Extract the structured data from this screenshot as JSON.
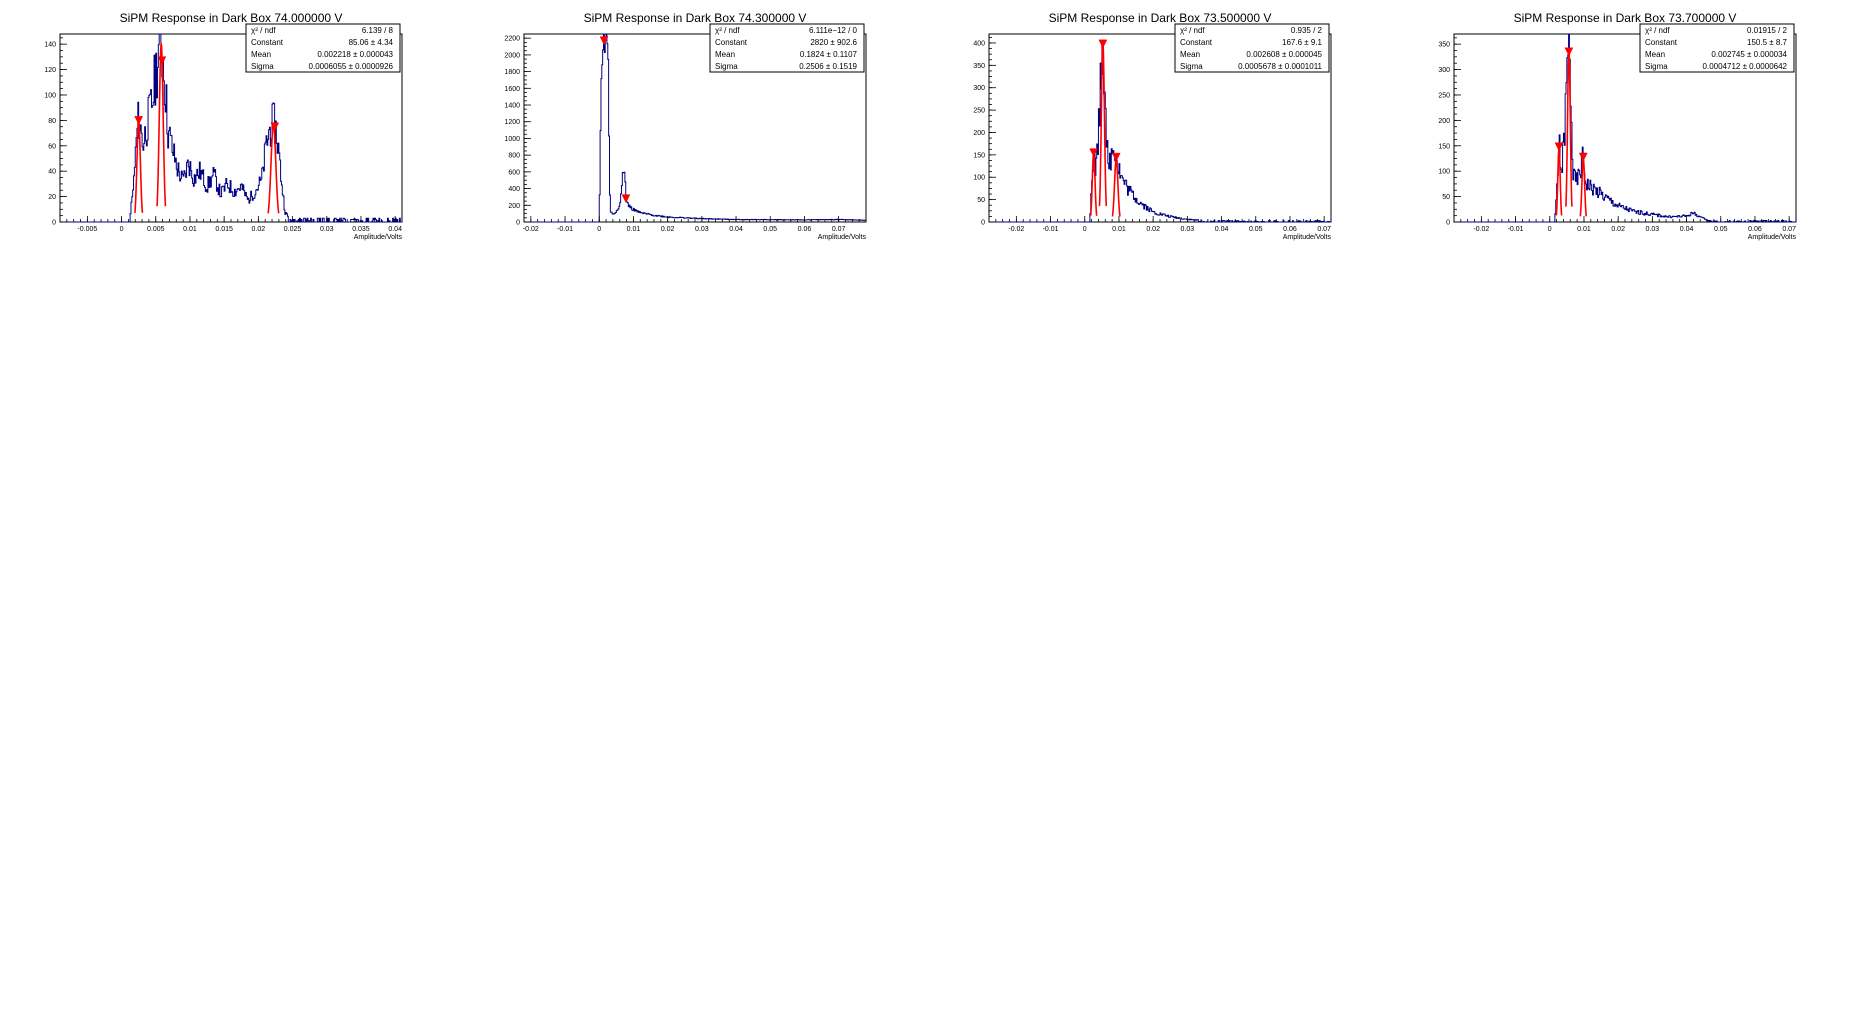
{
  "chart_data": [
    {
      "type": "histogram",
      "title": "SiPM Response in Dark Box 74.000000 V",
      "xlabel": "Amplitude/Volts",
      "ylabel": "",
      "xlim": [
        -0.009,
        0.041
      ],
      "ylim": [
        0,
        148
      ],
      "xticks": [
        -0.005,
        0,
        0.005,
        0.01,
        0.015,
        0.02,
        0.025,
        0.03,
        0.035,
        0.04
      ],
      "xtick_labels": [
        "-0.005",
        "0",
        "0.005",
        "0.01",
        "0.015",
        "0.02",
        "0.025",
        "0.03",
        "0.035",
        "0.04"
      ],
      "yticks": [
        0,
        20,
        40,
        60,
        80,
        100,
        120,
        140
      ],
      "ytick_labels": [
        "0",
        "20",
        "40",
        "60",
        "80",
        "100",
        "120",
        "140"
      ],
      "stats": [
        {
          "name": "χ² / ndf",
          "value": "6.139 / 8"
        },
        {
          "name": "Constant",
          "value": "85.06 ± 4.34"
        },
        {
          "name": "Mean",
          "value": "0.002218 ± 0.000043"
        },
        {
          "name": "Sigma",
          "value": "0.0006055 ± 0.0000926"
        }
      ],
      "hist": {
        "line_color": "#000080",
        "shape_points": [
          [
            -0.009,
            0
          ],
          [
            0.0005,
            0
          ],
          [
            0.0012,
            3
          ],
          [
            0.0017,
            25
          ],
          [
            0.0022,
            65
          ],
          [
            0.0025,
            83
          ],
          [
            0.0028,
            72
          ],
          [
            0.0032,
            62
          ],
          [
            0.0038,
            78
          ],
          [
            0.0045,
            95
          ],
          [
            0.0052,
            125
          ],
          [
            0.0058,
            142
          ],
          [
            0.0062,
            122
          ],
          [
            0.0068,
            72
          ],
          [
            0.0075,
            56
          ],
          [
            0.0082,
            42
          ],
          [
            0.009,
            32
          ],
          [
            0.0098,
            47
          ],
          [
            0.0106,
            34
          ],
          [
            0.0115,
            40
          ],
          [
            0.0125,
            28
          ],
          [
            0.0135,
            37
          ],
          [
            0.0145,
            22
          ],
          [
            0.0155,
            30
          ],
          [
            0.0165,
            24
          ],
          [
            0.0175,
            28
          ],
          [
            0.0185,
            17
          ],
          [
            0.0195,
            24
          ],
          [
            0.0205,
            33
          ],
          [
            0.0212,
            62
          ],
          [
            0.0218,
            75
          ],
          [
            0.0224,
            78
          ],
          [
            0.0229,
            60
          ],
          [
            0.0234,
            32
          ],
          [
            0.0239,
            8
          ],
          [
            0.0245,
            3
          ],
          [
            0.0265,
            2
          ],
          [
            0.03,
            1
          ],
          [
            0.035,
            1
          ],
          [
            0.04,
            1
          ],
          [
            0.041,
            0
          ]
        ],
        "seed": 11
      },
      "fits": [
        {
          "mean": 0.0025,
          "sigma": 0.00025,
          "amp": 80
        },
        {
          "mean": 0.0058,
          "sigma": 0.00028,
          "amp": 140
        },
        {
          "mean": 0.0222,
          "sigma": 0.00035,
          "amp": 77
        }
      ],
      "markers": [
        {
          "x": 0.0025,
          "y": 80
        },
        {
          "x": 0.0059,
          "y": 127
        },
        {
          "x": 0.0224,
          "y": 75
        }
      ]
    },
    {
      "type": "histogram",
      "title": "SiPM Response in Dark Box 74.300000 V",
      "xlabel": "Amplitude/Volts",
      "ylabel": "",
      "xlim": [
        -0.022,
        0.078
      ],
      "ylim": [
        0,
        2250
      ],
      "xticks": [
        -0.02,
        -0.01,
        0,
        0.01,
        0.02,
        0.03,
        0.04,
        0.05,
        0.06,
        0.07
      ],
      "xtick_labels": [
        "-0.02",
        "-0.01",
        "0",
        "0.01",
        "0.02",
        "0.03",
        "0.04",
        "0.05",
        "0.06",
        "0.07"
      ],
      "yticks": [
        0,
        200,
        400,
        600,
        800,
        1000,
        1200,
        1400,
        1600,
        1800,
        2000,
        2200
      ],
      "ytick_labels": [
        "0",
        "200",
        "400",
        "600",
        "800",
        "1000",
        "1200",
        "1400",
        "1600",
        "1800",
        "2000",
        "2200"
      ],
      "stats": [
        {
          "name": "χ² / ndf",
          "value": "6.111e−12 / 0"
        },
        {
          "name": "Constant",
          "value": "2820 ± 902.6"
        },
        {
          "name": "Mean",
          "value": "0.1824 ± 0.1107"
        },
        {
          "name": "Sigma",
          "value": "0.2506 ± 0.1519"
        }
      ],
      "hist": {
        "line_color": "#000080",
        "shape_points": [
          [
            -0.022,
            0
          ],
          [
            0.0,
            0
          ],
          [
            0.0005,
            1400
          ],
          [
            0.001,
            2200
          ],
          [
            0.0025,
            2200
          ],
          [
            0.0032,
            120
          ],
          [
            0.0045,
            90
          ],
          [
            0.006,
            200
          ],
          [
            0.0068,
            570
          ],
          [
            0.0075,
            570
          ],
          [
            0.008,
            230
          ],
          [
            0.0095,
            160
          ],
          [
            0.012,
            110
          ],
          [
            0.016,
            80
          ],
          [
            0.02,
            60
          ],
          [
            0.03,
            40
          ],
          [
            0.04,
            30
          ],
          [
            0.05,
            28
          ],
          [
            0.06,
            25
          ],
          [
            0.07,
            30
          ],
          [
            0.078,
            20
          ]
        ],
        "seed": 22,
        "noise_scale": 0.12
      },
      "fits": [],
      "markers": [
        {
          "x": 0.0014,
          "y": 2170
        },
        {
          "x": 0.0078,
          "y": 280
        }
      ]
    },
    {
      "type": "histogram",
      "title": "SiPM Response in Dark Box 73.500000 V",
      "xlabel": "Amplitude/Volts",
      "ylabel": "",
      "xlim": [
        -0.028,
        0.072
      ],
      "ylim": [
        0,
        420
      ],
      "xticks": [
        -0.02,
        -0.01,
        0,
        0.01,
        0.02,
        0.03,
        0.04,
        0.05,
        0.06,
        0.07
      ],
      "xtick_labels": [
        "-0.02",
        "-0.01",
        "0",
        "0.01",
        "0.02",
        "0.03",
        "0.04",
        "0.05",
        "0.06",
        "0.07"
      ],
      "yticks": [
        0,
        50,
        100,
        150,
        200,
        250,
        300,
        350,
        400
      ],
      "ytick_labels": [
        "0",
        "50",
        "100",
        "150",
        "200",
        "250",
        "300",
        "350",
        "400"
      ],
      "stats": [
        {
          "name": "χ² / ndf",
          "value": "0.935 / 2"
        },
        {
          "name": "Constant",
          "value": "167.6 ± 9.1"
        },
        {
          "name": "Mean",
          "value": "0.002608 ± 0.000045"
        },
        {
          "name": "Sigma",
          "value": "0.0005678 ± 0.0001011"
        }
      ],
      "hist": {
        "line_color": "#000080",
        "shape_points": [
          [
            -0.028,
            0
          ],
          [
            0.0015,
            0
          ],
          [
            0.002,
            90
          ],
          [
            0.0026,
            165
          ],
          [
            0.0032,
            110
          ],
          [
            0.0042,
            230
          ],
          [
            0.0052,
            410
          ],
          [
            0.006,
            300
          ],
          [
            0.0068,
            110
          ],
          [
            0.0078,
            150
          ],
          [
            0.0088,
            175
          ],
          [
            0.0096,
            130
          ],
          [
            0.011,
            95
          ],
          [
            0.013,
            70
          ],
          [
            0.016,
            45
          ],
          [
            0.02,
            22
          ],
          [
            0.025,
            12
          ],
          [
            0.03,
            6
          ],
          [
            0.035,
            3
          ],
          [
            0.045,
            1
          ],
          [
            0.072,
            0
          ]
        ],
        "seed": 33
      },
      "fits": [
        {
          "mean": 0.0026,
          "sigma": 0.0004,
          "amp": 155
        },
        {
          "mean": 0.0053,
          "sigma": 0.00045,
          "amp": 400
        },
        {
          "mean": 0.0092,
          "sigma": 0.0005,
          "amp": 140
        }
      ],
      "markers": [
        {
          "x": 0.0026,
          "y": 155
        },
        {
          "x": 0.0053,
          "y": 398
        },
        {
          "x": 0.0092,
          "y": 145
        }
      ]
    },
    {
      "type": "histogram",
      "title": "SiPM Response in Dark Box 73.700000 V",
      "xlabel": "Amplitude/Volts",
      "ylabel": "",
      "xlim": [
        -0.028,
        0.072
      ],
      "ylim": [
        0,
        370
      ],
      "xticks": [
        -0.02,
        -0.01,
        0,
        0.01,
        0.02,
        0.03,
        0.04,
        0.05,
        0.06,
        0.07
      ],
      "xtick_labels": [
        "-0.02",
        "-0.01",
        "0",
        "0.01",
        "0.02",
        "0.03",
        "0.04",
        "0.05",
        "0.06",
        "0.07"
      ],
      "yticks": [
        0,
        50,
        100,
        150,
        200,
        250,
        300,
        350
      ],
      "ytick_labels": [
        "0",
        "50",
        "100",
        "150",
        "200",
        "250",
        "300",
        "350"
      ],
      "stats": [
        {
          "name": "χ² / ndf",
          "value": "0.01915 / 2"
        },
        {
          "name": "Constant",
          "value": "150.5 ± 8.7"
        },
        {
          "name": "Mean",
          "value": "0.002745 ± 0.000034"
        },
        {
          "name": "Sigma",
          "value": "0.0004712 ± 0.0000642"
        }
      ],
      "hist": {
        "line_color": "#000080",
        "shape_points": [
          [
            -0.028,
            0
          ],
          [
            0.0015,
            0
          ],
          [
            0.0022,
            80
          ],
          [
            0.0028,
            150
          ],
          [
            0.0035,
            95
          ],
          [
            0.0045,
            200
          ],
          [
            0.0055,
            355
          ],
          [
            0.0062,
            260
          ],
          [
            0.0068,
            90
          ],
          [
            0.0078,
            80
          ],
          [
            0.0088,
            95
          ],
          [
            0.0096,
            125
          ],
          [
            0.0106,
            80
          ],
          [
            0.0115,
            72
          ],
          [
            0.013,
            65
          ],
          [
            0.016,
            50
          ],
          [
            0.02,
            32
          ],
          [
            0.025,
            20
          ],
          [
            0.03,
            15
          ],
          [
            0.035,
            10
          ],
          [
            0.04,
            12
          ],
          [
            0.042,
            18
          ],
          [
            0.0445,
            8
          ],
          [
            0.047,
            1
          ],
          [
            0.072,
            0
          ]
        ],
        "seed": 44
      },
      "fits": [
        {
          "mean": 0.0027,
          "sigma": 0.00035,
          "amp": 145
        },
        {
          "mean": 0.0056,
          "sigma": 0.0004,
          "amp": 340
        },
        {
          "mean": 0.0098,
          "sigma": 0.0004,
          "amp": 125
        }
      ],
      "markers": [
        {
          "x": 0.0027,
          "y": 148
        },
        {
          "x": 0.0056,
          "y": 335
        },
        {
          "x": 0.0098,
          "y": 128
        }
      ]
    }
  ]
}
